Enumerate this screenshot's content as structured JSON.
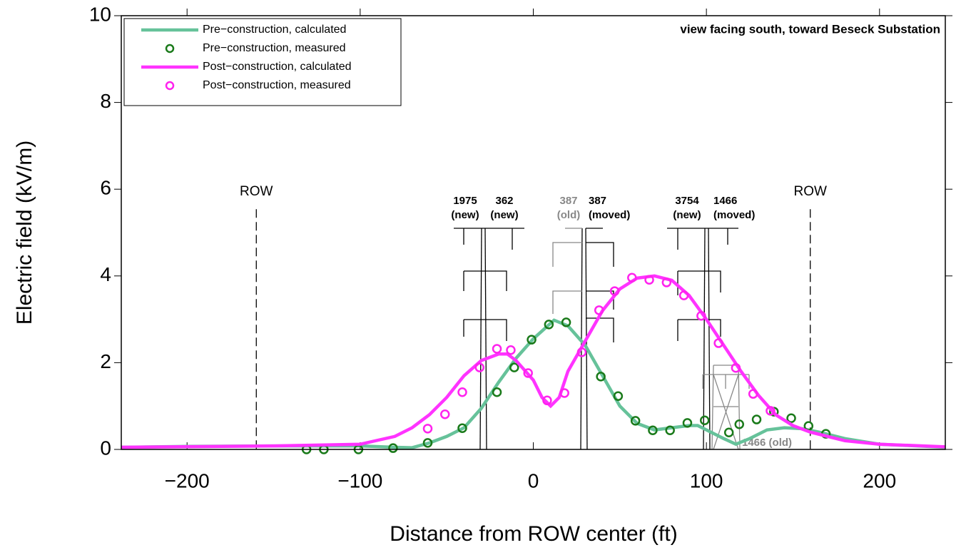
{
  "chart_data": {
    "type": "line",
    "xlabel": "Distance from ROW center (ft)",
    "ylabel": "Electric field (kV/m)",
    "annotation": "view facing south, toward Beseck Substation",
    "xlim": [
      -238,
      238
    ],
    "ylim": [
      0,
      10
    ],
    "xticks": [
      {
        "value": -200,
        "label": "−200"
      },
      {
        "value": -100,
        "label": "−100"
      },
      0,
      100,
      200
    ],
    "yticks": [
      0,
      2,
      4,
      6,
      8,
      10
    ],
    "row_lines": [
      {
        "x": -160,
        "label": "ROW"
      },
      {
        "x": 160,
        "label": "ROW"
      }
    ],
    "structure_labels": [
      [
        "1975",
        "(new)"
      ],
      [
        "362",
        "(new)"
      ],
      [
        "387",
        "(old)"
      ],
      [
        "387",
        "(moved)"
      ],
      [
        "3754",
        "(new)"
      ],
      [
        "1466",
        "(moved)"
      ],
      [
        "1466 (old)"
      ]
    ],
    "series": [
      {
        "name": "Pre−construction, calculated",
        "color": "#66c29a",
        "kind": "line",
        "x": [
          -238,
          -200,
          -150,
          -100,
          -80,
          -70,
          -60,
          -50,
          -40,
          -30,
          -20,
          -10,
          0,
          12,
          20,
          30,
          40,
          50,
          60,
          70,
          80,
          90,
          95,
          100,
          110,
          117,
          125,
          135,
          145,
          155,
          165,
          180,
          200,
          238
        ],
        "values": [
          0.05,
          0.07,
          0.08,
          0.08,
          0.05,
          0.04,
          0.15,
          0.3,
          0.5,
          0.95,
          1.55,
          2.1,
          2.55,
          2.98,
          2.85,
          2.4,
          1.7,
          1.0,
          0.6,
          0.45,
          0.5,
          0.55,
          0.55,
          0.45,
          0.25,
          0.12,
          0.25,
          0.45,
          0.5,
          0.48,
          0.4,
          0.25,
          0.12,
          0.05
        ]
      },
      {
        "name": "Pre−construction, measured",
        "color": "#1a7a1a",
        "kind": "points",
        "x": [
          -131,
          -121,
          -101,
          -81,
          -61,
          -41,
          -21,
          -11,
          -1,
          9,
          19,
          39,
          49,
          59,
          69,
          79,
          89,
          99,
          113,
          119,
          129,
          139,
          149,
          159,
          169
        ],
        "values": [
          0,
          0,
          0,
          0.03,
          0.15,
          0.49,
          1.32,
          1.89,
          2.53,
          2.88,
          2.93,
          1.68,
          1.23,
          0.66,
          0.44,
          0.44,
          0.61,
          0.67,
          0.39,
          0.58,
          0.69,
          0.87,
          0.72,
          0.54,
          0.36
        ]
      },
      {
        "name": "Post−construction, calculated",
        "color": "#ff33ff",
        "kind": "line",
        "x": [
          -238,
          -150,
          -100,
          -80,
          -70,
          -60,
          -50,
          -40,
          -30,
          -20,
          -15,
          -10,
          0,
          5,
          10,
          15,
          20,
          30,
          40,
          50,
          60,
          70,
          80,
          90,
          100,
          110,
          120,
          130,
          140,
          150,
          160,
          170,
          180,
          200,
          238
        ],
        "values": [
          0.05,
          0.08,
          0.12,
          0.3,
          0.5,
          0.8,
          1.2,
          1.7,
          2.05,
          2.2,
          2.2,
          2.05,
          1.6,
          1.2,
          1.0,
          1.2,
          1.8,
          2.5,
          3.2,
          3.7,
          3.95,
          4.0,
          3.9,
          3.55,
          3.0,
          2.4,
          1.8,
          1.25,
          0.8,
          0.55,
          0.4,
          0.3,
          0.2,
          0.12,
          0.06
        ]
      },
      {
        "name": "Post−construction, measured",
        "color": "#ff22ee",
        "kind": "points",
        "x": [
          -61,
          -51,
          -41,
          -31,
          -21,
          -13,
          -3,
          8,
          18,
          28,
          38,
          47,
          57,
          67,
          77,
          87,
          97,
          107,
          117,
          127,
          137
        ],
        "values": [
          0.48,
          0.81,
          1.32,
          1.89,
          2.32,
          2.29,
          1.76,
          1.13,
          1.3,
          2.24,
          3.21,
          3.65,
          3.96,
          3.91,
          3.85,
          3.55,
          3.08,
          2.45,
          1.88,
          1.28,
          0.89
        ]
      }
    ]
  }
}
